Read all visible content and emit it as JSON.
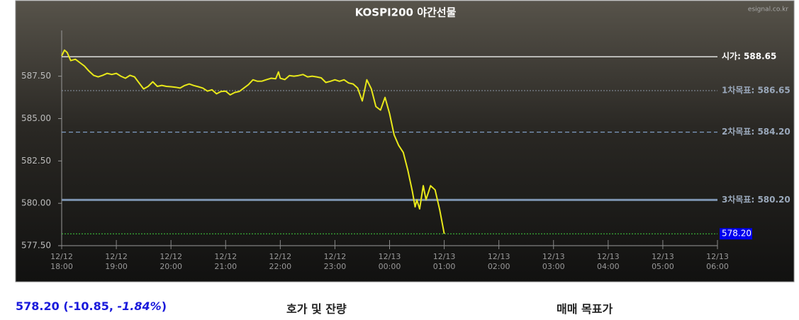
{
  "chart_data": {
    "type": "line",
    "title": "KOSPI200 야간선물",
    "source": "esignal.co.kr",
    "xlim": [
      "12/12 18:00",
      "12/13 06:00"
    ],
    "xticks": [
      "12/12 18:00",
      "12/12 19:00",
      "12/12 20:00",
      "12/12 21:00",
      "12/12 22:00",
      "12/12 23:00",
      "12/13 00:00",
      "12/13 01:00",
      "12/13 02:00",
      "12/13 03:00",
      "12/13 04:00",
      "12/13 05:00",
      "12/13 06:00"
    ],
    "ylim": [
      577.5,
      590.2
    ],
    "yticks": [
      {
        "value": 577.5,
        "label": "577.50"
      },
      {
        "value": 580,
        "label": "580.00"
      },
      {
        "value": 582.5,
        "label": "582.50"
      },
      {
        "value": 585,
        "label": "585.00"
      },
      {
        "value": 587.5,
        "label": "587.50"
      }
    ],
    "grid": false,
    "series": [
      {
        "color": "#e8e81a",
        "x": [
          "12/12 18:00",
          "12/12 18:03",
          "12/12 18:06",
          "12/12 18:10",
          "12/12 18:15",
          "12/12 18:20",
          "12/12 18:25",
          "12/12 18:30",
          "12/12 18:35",
          "12/12 18:40",
          "12/12 18:45",
          "12/12 18:50",
          "12/12 18:55",
          "12/12 19:00",
          "12/12 19:05",
          "12/12 19:10",
          "12/12 19:15",
          "12/12 19:20",
          "12/12 19:25",
          "12/12 19:30",
          "12/12 19:35",
          "12/12 19:40",
          "12/12 19:45",
          "12/12 19:50",
          "12/12 19:55",
          "12/12 20:00",
          "12/12 20:05",
          "12/12 20:10",
          "12/12 20:15",
          "12/12 20:20",
          "12/12 20:25",
          "12/12 20:30",
          "12/12 20:35",
          "12/12 20:40",
          "12/12 20:45",
          "12/12 20:50",
          "12/12 20:55",
          "12/12 21:00",
          "12/12 21:05",
          "12/12 21:10",
          "12/12 21:15",
          "12/12 21:20",
          "12/12 21:25",
          "12/12 21:30",
          "12/12 21:35",
          "12/12 21:40",
          "12/12 21:45",
          "12/12 21:50",
          "12/12 21:55",
          "12/12 21:58",
          "12/12 22:00",
          "12/12 22:05",
          "12/12 22:10",
          "12/12 22:15",
          "12/12 22:20",
          "12/12 22:25",
          "12/12 22:30",
          "12/12 22:35",
          "12/12 22:40",
          "12/12 22:45",
          "12/12 22:50",
          "12/12 22:55",
          "12/12 23:00",
          "12/12 23:05",
          "12/12 23:10",
          "12/12 23:15",
          "12/12 23:20",
          "12/12 23:25",
          "12/12 23:30",
          "12/12 23:35",
          "12/12 23:40",
          "12/12 23:45",
          "12/12 23:50",
          "12/12 23:55",
          "12/13 00:00",
          "12/13 00:05",
          "12/13 00:10",
          "12/13 00:15",
          "12/13 00:20",
          "12/13 00:25",
          "12/13 00:28",
          "12/13 00:30",
          "12/13 00:33",
          "12/13 00:37",
          "12/13 00:40",
          "12/13 00:45",
          "12/13 00:50",
          "12/13 00:55",
          "12/13 01:00"
        ],
        "values": [
          588.7,
          589.04,
          588.9,
          588.42,
          588.5,
          588.3,
          588.1,
          587.8,
          587.55,
          587.46,
          587.55,
          587.67,
          587.6,
          587.67,
          587.5,
          587.38,
          587.55,
          587.46,
          587.1,
          586.75,
          586.9,
          587.17,
          586.9,
          586.96,
          586.9,
          586.88,
          586.85,
          586.8,
          586.95,
          587.04,
          586.95,
          586.88,
          586.8,
          586.62,
          586.7,
          586.46,
          586.6,
          586.62,
          586.4,
          586.54,
          586.6,
          586.8,
          587.0,
          587.29,
          587.2,
          587.21,
          587.3,
          587.38,
          587.35,
          587.75,
          587.38,
          587.3,
          587.54,
          587.5,
          587.54,
          587.6,
          587.46,
          587.5,
          587.46,
          587.4,
          587.13,
          587.2,
          587.29,
          587.2,
          587.29,
          587.1,
          587.04,
          586.8,
          586.04,
          587.29,
          586.75,
          585.71,
          585.5,
          586.25,
          585.29,
          584.04,
          583.42,
          583.0,
          581.96,
          580.71,
          579.79,
          580.2,
          579.67,
          581.04,
          580.21,
          581.04,
          580.79,
          579.62,
          578.2
        ]
      }
    ],
    "reference_lines": [
      {
        "label": "시가: 588.65",
        "value": 588.65,
        "color": "#ffffff",
        "style": "solid",
        "width": 1.2,
        "label_color": "#ffffff"
      },
      {
        "label": "1차목표: 586.65",
        "value": 586.65,
        "color": "#8a96a6",
        "style": "dotted",
        "width": 1,
        "label_color": "#9aa8bb"
      },
      {
        "label": "2차목표: 584.20",
        "value": 584.2,
        "color": "#7f9cc4",
        "style": "dashed",
        "width": 1.2,
        "label_color": "#9aa8bb"
      },
      {
        "label": "3차목표: 580.20",
        "value": 580.2,
        "color": "#7d93b0",
        "style": "solid",
        "width": 3,
        "label_color": "#9aa8bb"
      },
      {
        "label": "578.20",
        "value": 578.2,
        "color": "#3fcf3f",
        "style": "dotted",
        "width": 1,
        "label_color": "#ffffff",
        "label_box": "#0000ee"
      }
    ]
  },
  "footer": {
    "quote_parts": [
      "578.20 (-10.85, ",
      "-1.84%",
      ")"
    ],
    "orderbook": "호가 및 잔량",
    "targets": "매매 목표가"
  }
}
